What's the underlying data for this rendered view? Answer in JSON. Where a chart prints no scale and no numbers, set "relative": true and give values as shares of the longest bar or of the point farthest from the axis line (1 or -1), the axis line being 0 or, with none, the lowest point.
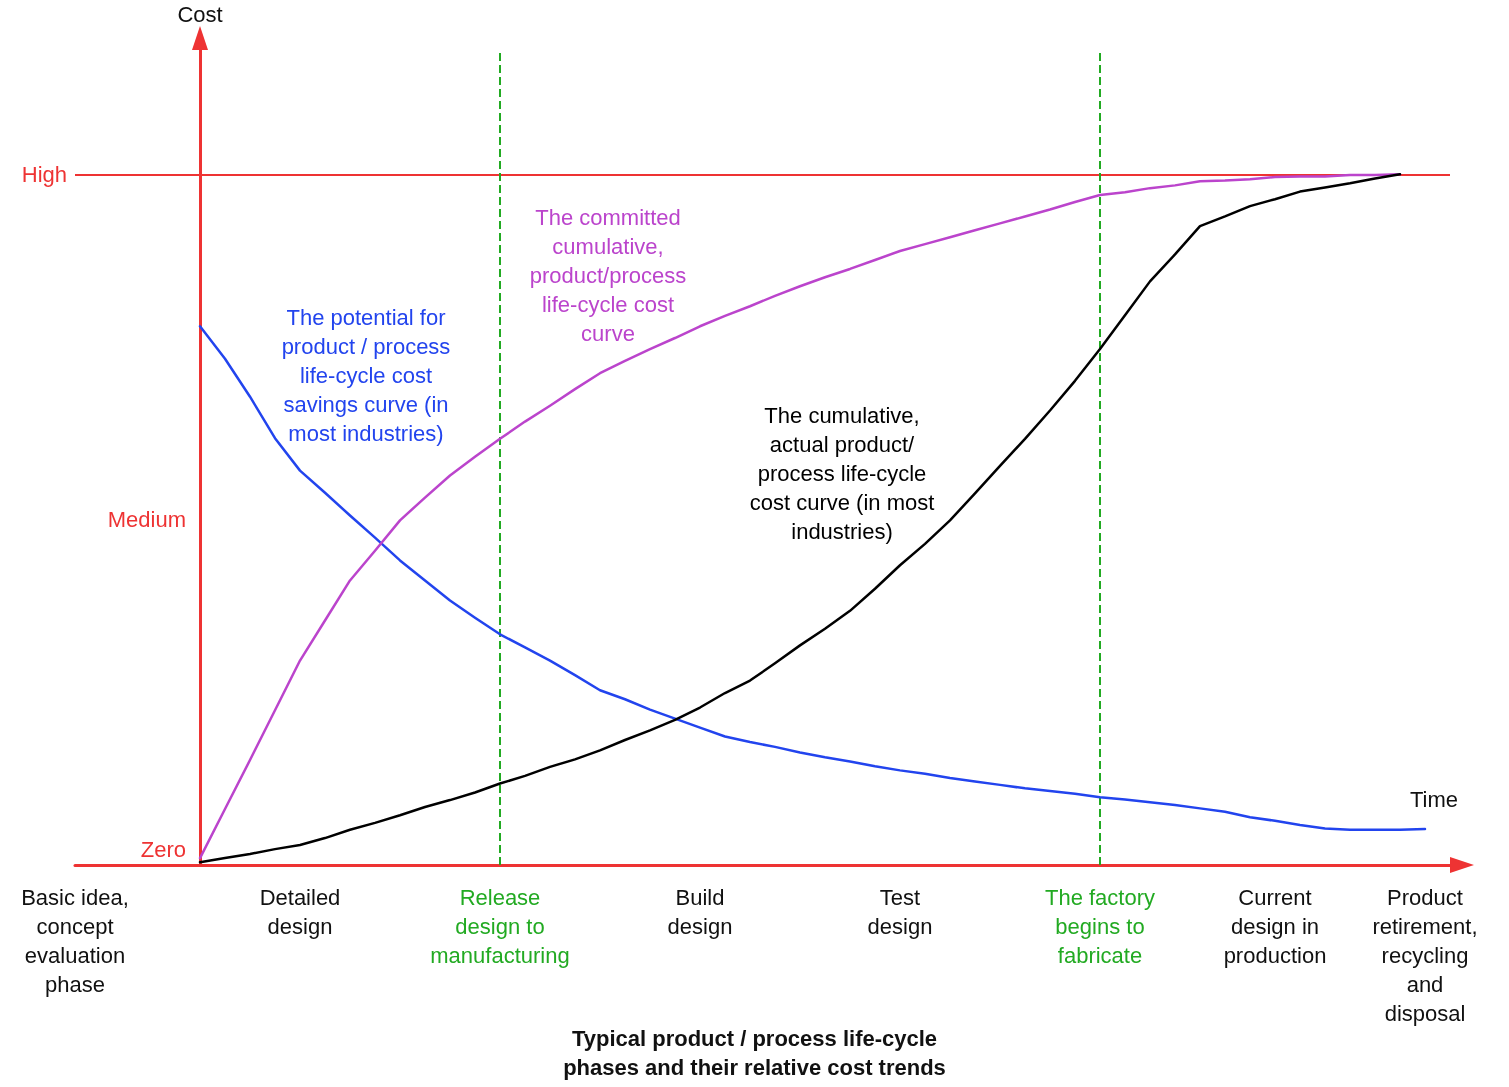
{
  "chart_data": {
    "type": "line",
    "relative": true,
    "title": "Typical product / process life-cycle\nphases and their relative cost trends",
    "xlabel": "Time",
    "marker": "none",
    "line_style": "solid",
    "grid": false,
    "legend": false,
    "categories": [
      "Basic idea,\nconcept\nevaluation\nphase",
      null,
      null,
      null,
      null,
      null,
      null,
      null,
      null,
      "Detailed\ndesign",
      null,
      null,
      null,
      null,
      null,
      null,
      null,
      "Release\ndesign to\nmanufacturing",
      null,
      null,
      null,
      null,
      null,
      null,
      null,
      "Build\ndesign",
      null,
      null,
      null,
      null,
      null,
      null,
      null,
      "Test\ndesign",
      null,
      null,
      null,
      null,
      null,
      null,
      null,
      "The factory\nbegins to\nfabricate",
      null,
      null,
      null,
      null,
      null,
      null,
      "Current\ndesign in\nproduction",
      null,
      null,
      null,
      null,
      null,
      "Product\nretirement,\nrecycling\nand\ndisposal",
      null
    ],
    "series": [
      {
        "name": "The potential for\nproduct / process\nlife-cycle cost\nsavings curve (in\nmost industries)",
        "color": "#2244ee",
        "values": [
          null,
          null,
          null,
          null,
          null,
          0.78,
          0.733,
          0.678,
          0.618,
          0.571,
          0.539,
          0.506,
          0.474,
          0.441,
          0.412,
          0.383,
          0.358,
          0.334,
          0.315,
          0.296,
          0.275,
          0.253,
          0.24,
          0.225,
          0.212,
          0.199,
          0.186,
          0.178,
          0.171,
          0.163,
          0.156,
          0.15,
          0.143,
          0.137,
          0.132,
          0.126,
          0.121,
          0.116,
          0.111,
          0.107,
          0.103,
          0.098,
          0.095,
          0.091,
          0.087,
          0.082,
          0.077,
          0.069,
          0.064,
          0.058,
          0.053,
          0.051,
          0.051,
          0.051,
          0.052,
          null
        ]
      },
      {
        "name": "The committed\ncumulative,\nproduct/process\nlife-cycle cost\ncurve",
        "color": "#bb44cc",
        "values": [
          null,
          null,
          null,
          null,
          null,
          0.01,
          0.081,
          0.152,
          0.224,
          0.296,
          0.354,
          0.412,
          0.455,
          0.499,
          0.532,
          0.564,
          0.591,
          0.617,
          0.642,
          0.665,
          0.689,
          0.712,
          0.73,
          0.747,
          0.763,
          0.78,
          0.795,
          0.809,
          0.824,
          0.838,
          0.851,
          0.863,
          0.876,
          0.889,
          0.899,
          0.909,
          0.919,
          0.929,
          0.939,
          0.949,
          0.96,
          0.97,
          0.974,
          0.98,
          0.984,
          0.99,
          0.991,
          0.993,
          0.996,
          0.997,
          0.997,
          0.999,
          0.999,
          1,
          null,
          null
        ]
      },
      {
        "name": "The cumulative,\nactual product/\nprocess life-cycle\ncost curve (in most\nindustries)",
        "color": "#000000",
        "values": [
          null,
          null,
          null,
          null,
          null,
          0.004,
          0.01,
          0.016,
          0.023,
          0.029,
          0.039,
          0.051,
          0.061,
          0.072,
          0.084,
          0.094,
          0.105,
          0.118,
          0.129,
          0.142,
          0.153,
          0.166,
          0.181,
          0.195,
          0.21,
          0.228,
          0.249,
          0.267,
          0.292,
          0.318,
          0.342,
          0.368,
          0.4,
          0.434,
          0.465,
          0.499,
          0.538,
          0.578,
          0.617,
          0.658,
          0.701,
          0.747,
          0.796,
          0.845,
          0.884,
          0.925,
          0.939,
          0.954,
          0.964,
          0.975,
          0.981,
          0.987,
          0.994,
          1,
          null,
          null
        ]
      }
    ],
    "ref_lines": [
      {
        "axis": "y",
        "value": 1,
        "label": "High",
        "color": "#ee3333",
        "line_style": "solid"
      },
      {
        "axis": "x",
        "value": "Release\ndesign to\nmanufacturing",
        "color": "#22aa22",
        "line_style": "dashed"
      },
      {
        "axis": "x",
        "value": "The factory\nbegins to\nfabricate",
        "color": "#22aa22",
        "line_style": "dashed"
      }
    ],
    "annotations": [
      "Medium",
      "Zero",
      "Cost"
    ]
  }
}
